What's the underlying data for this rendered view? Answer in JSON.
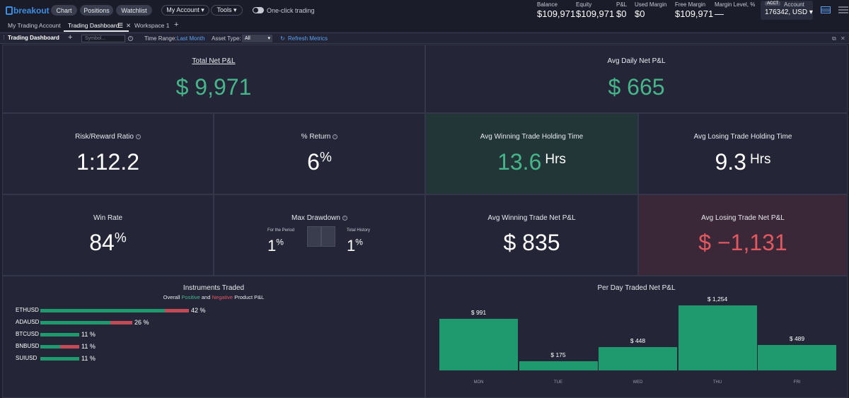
{
  "app": {
    "logo_text": "breakout",
    "nav": [
      "Chart",
      "Positions",
      "Watchlist"
    ],
    "menus": [
      "My Account ▾",
      "Tools ▾"
    ],
    "one_click_label": "One-click trading"
  },
  "account_metrics": [
    {
      "label": "Balance",
      "value": "$109,971"
    },
    {
      "label": "Equity",
      "value": "$109,971"
    },
    {
      "label": "P&L",
      "value": "$0"
    },
    {
      "label": "Used Margin",
      "value": "$0"
    },
    {
      "label": "Free Margin",
      "value": "$109,971"
    },
    {
      "label": "Margin Level, %",
      "value": "—"
    }
  ],
  "account": {
    "tag": "ACCT",
    "label": "Account",
    "value": "176342, USD ▾"
  },
  "tabs": [
    "My Trading Account",
    "Trading Dashboard",
    "Workspace 1"
  ],
  "toolbar": {
    "title": "Trading Dashboard",
    "symbol_placeholder": "Symbol...",
    "time_range_label": "Time Range:",
    "time_range_value": "Last Month",
    "asset_type_label": "Asset Type:",
    "asset_type_value": "All",
    "refresh_label": "Refresh Metrics"
  },
  "summary": {
    "total_net_pl": {
      "label": "Total Net P&L",
      "value": "$ 9,971"
    },
    "avg_daily_net_pl": {
      "label": "Avg Daily Net P&L",
      "value": "$ 665"
    },
    "risk_reward": {
      "label": "Risk/Reward Ratio",
      "value": "1:12.2"
    },
    "pct_return": {
      "label": "% Return",
      "value": "6",
      "unit": "%"
    },
    "avg_win_hold": {
      "label": "Avg Winning Trade Holding Time",
      "value": "13.6",
      "unit": "Hrs"
    },
    "avg_loss_hold": {
      "label": "Avg Losing Trade Holding Time",
      "value": "9.3",
      "unit": "Hrs"
    },
    "win_rate": {
      "label": "Win Rate",
      "value": "84",
      "unit": "%"
    },
    "max_drawdown": {
      "label": "Max Drawdown",
      "period_label": "For the Period",
      "period_value": "1",
      "period_unit": "%",
      "history_label": "Total History",
      "history_value": "1",
      "history_unit": "%"
    },
    "avg_win_net": {
      "label": "Avg Winning Trade Net P&L",
      "value": "$ 835"
    },
    "avg_loss_net": {
      "label": "Avg Losing Trade Net P&L",
      "value": "$ −1,131"
    }
  },
  "instruments": {
    "title": "Instruments Traded",
    "subtitle_prefix": "Overall",
    "subtitle_positive": "Positive",
    "subtitle_and": "and",
    "subtitle_negative": "Negative",
    "subtitle_suffix": "Product P&L",
    "items": [
      {
        "name": "ETHUSD",
        "pct": "42 %",
        "positive": 0.84,
        "negative": 0.16
      },
      {
        "name": "ADAUSD",
        "pct": "26 %",
        "positive": 0.76,
        "negative": 0.24
      },
      {
        "name": "BTCUSD",
        "pct": "11 %",
        "positive": 1.0,
        "negative": 0.0
      },
      {
        "name": "BNBUSD",
        "pct": "11 %",
        "positive": 0.5,
        "negative": 0.5
      },
      {
        "name": "SUIUSD",
        "pct": "11 %",
        "positive": 1.0,
        "negative": 0.0
      }
    ]
  },
  "chart_data": {
    "type": "bar",
    "title": "Per Day Traded Net P&L",
    "categories": [
      "MON",
      "TUE",
      "WED",
      "THU",
      "FRI"
    ],
    "values": [
      991,
      175,
      448,
      1254,
      489
    ],
    "value_labels": [
      "$ 991",
      "$ 175",
      "$ 448",
      "$ 1,254",
      "$ 489"
    ]
  }
}
